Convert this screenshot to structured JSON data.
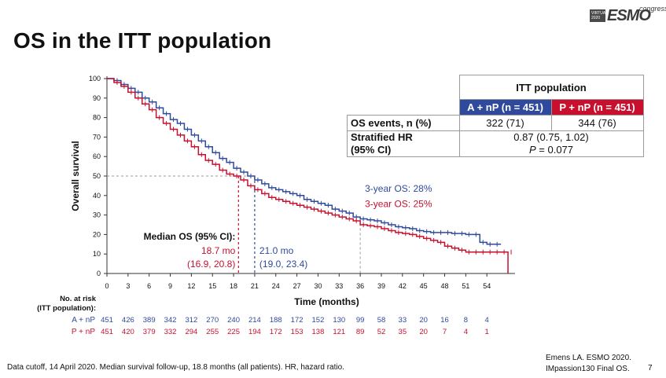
{
  "slide": {
    "title": "OS in the ITT population",
    "logo": {
      "badge": "VIRTUAL 2020",
      "brand": "ESMO",
      "suffix": "congress"
    },
    "footer_left": "Data cutoff, 14 April 2020. Median survival follow-up, 18.8 months (all patients). HR, hazard ratio.",
    "citation_line1": "Emens LA. ESMO 2020.",
    "citation_line2": "IMpassion130 Final OS.",
    "page_number": "7"
  },
  "table": {
    "group_header": "ITT population",
    "arm_a": "A + nP (n = 451)",
    "arm_p": "P + nP (n = 451)",
    "rows": [
      {
        "label": "OS events, n (%)",
        "a": "322 (71)",
        "p": "344 (76)"
      },
      {
        "label_line1": "Stratified HR",
        "label_line2": "(95% CI)",
        "value_line1": "0.87 (0.75, 1.02)",
        "value_line2_prefix": "P",
        "value_line2_rest": " = 0.077"
      }
    ]
  },
  "chart_data": {
    "type": "line",
    "ylabel": "Overall survival",
    "xlabel": "Time (months)",
    "xlim": [
      0,
      58
    ],
    "ylim": [
      0,
      100
    ],
    "x_ticks": [
      0,
      3,
      6,
      9,
      12,
      15,
      18,
      21,
      24,
      27,
      30,
      33,
      36,
      39,
      42,
      45,
      48,
      51,
      54
    ],
    "y_ticks": [
      0,
      10,
      20,
      30,
      40,
      50,
      60,
      70,
      80,
      90,
      100
    ],
    "colors": {
      "a": "#2f4a9c",
      "p": "#c8102e"
    },
    "series": [
      {
        "name": "A + nP",
        "color": "#2f4a9c",
        "x": [
          0,
          1,
          2,
          3,
          4,
          5,
          6,
          7,
          8,
          9,
          10,
          11,
          12,
          13,
          14,
          15,
          16,
          17,
          18,
          19,
          20,
          21,
          22,
          23,
          24,
          25,
          26,
          27,
          28,
          29,
          30,
          31,
          32,
          33,
          34,
          35,
          36,
          37,
          38,
          39,
          40,
          41,
          42,
          43,
          44,
          45,
          46,
          47,
          48,
          49,
          50,
          51,
          52,
          53,
          54,
          55,
          56
        ],
        "y": [
          100,
          99,
          97,
          95,
          93,
          90,
          88,
          85,
          82,
          79,
          77,
          74,
          71,
          68,
          65,
          62,
          59,
          57,
          54,
          52,
          50,
          48,
          46,
          44,
          43,
          42,
          41,
          40,
          38,
          37,
          36,
          35,
          33,
          32,
          31,
          29,
          28,
          27.5,
          27,
          26,
          25,
          24,
          23.5,
          23,
          22,
          21.5,
          21,
          21,
          21,
          20.5,
          20.5,
          20,
          20,
          16,
          15,
          15,
          15
        ]
      },
      {
        "name": "P + nP",
        "color": "#c8102e",
        "x": [
          0,
          1,
          2,
          3,
          4,
          5,
          6,
          7,
          8,
          9,
          10,
          11,
          12,
          13,
          14,
          15,
          16,
          17,
          18,
          19,
          20,
          21,
          22,
          23,
          24,
          25,
          26,
          27,
          28,
          29,
          30,
          31,
          32,
          33,
          34,
          35,
          36,
          37,
          38,
          39,
          40,
          41,
          42,
          43,
          44,
          45,
          46,
          47,
          48,
          49,
          50,
          51,
          52,
          53,
          54,
          55,
          56,
          57,
          57
        ],
        "y": [
          100,
          98,
          96,
          93,
          90,
          87,
          84,
          80,
          77,
          74,
          71,
          68,
          65,
          61,
          58,
          56,
          53,
          51,
          50,
          48,
          45,
          43,
          41,
          39,
          38,
          37,
          36,
          35,
          34,
          33,
          32,
          31,
          30,
          29,
          28,
          27,
          25,
          24.5,
          24,
          23,
          22,
          21,
          20.5,
          20,
          19,
          18,
          17,
          16,
          14,
          13,
          12,
          11,
          11,
          11,
          11,
          11,
          11,
          11,
          0
        ]
      }
    ],
    "median": {
      "y": 50,
      "p_x": 18.7,
      "a_x": 21.0,
      "label": "Median OS (95% CI):",
      "p_value": "18.7 mo",
      "p_ci": "(16.9, 20.8)",
      "a_value": "21.0 mo",
      "a_ci": "(19.0, 23.4)"
    },
    "three_year": {
      "x": 36,
      "a_label": "3-year OS: 28%",
      "p_label": "3-year OS: 25%"
    },
    "at_risk": {
      "title_line1": "No. at risk",
      "title_line2": "(ITT population):",
      "rows": [
        {
          "label": "A + nP",
          "color": "#2f4a9c",
          "values": [
            "451",
            "426",
            "389",
            "342",
            "312",
            "270",
            "240",
            "214",
            "188",
            "172",
            "152",
            "130",
            "99",
            "58",
            "33",
            "20",
            "16",
            "8",
            "4"
          ]
        },
        {
          "label": "P + nP",
          "color": "#c8102e",
          "values": [
            "451",
            "420",
            "379",
            "332",
            "294",
            "255",
            "225",
            "194",
            "172",
            "153",
            "138",
            "121",
            "89",
            "52",
            "35",
            "20",
            "7",
            "4",
            "1"
          ]
        }
      ]
    }
  }
}
